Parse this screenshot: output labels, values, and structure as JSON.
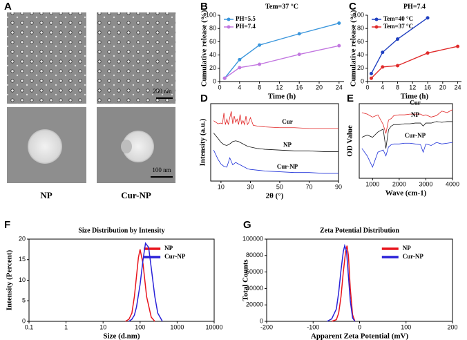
{
  "figure_a": {
    "label": "A",
    "scale_bars": [
      "250 nm",
      "100 nm"
    ],
    "captions": [
      "NP",
      "Cur-NP"
    ]
  },
  "chart_data": [
    {
      "type": "line",
      "label": "B",
      "title": "Tem=37 °C",
      "xlabel": "Time (h)",
      "ylabel": "Cumulative release (%)",
      "xlim": [
        0,
        25
      ],
      "xticks": [
        0,
        4,
        8,
        12,
        16,
        20,
        24
      ],
      "ylim": [
        0,
        100
      ],
      "yticks": [
        0,
        20,
        40,
        60,
        80,
        100
      ],
      "legend": "upper left",
      "markers": true,
      "frame": false,
      "series": [
        {
          "name": "PH=5.5",
          "color": "#3a96dc",
          "x": [
            1,
            4,
            8,
            16,
            24
          ],
          "values": [
            5,
            33,
            55,
            72,
            88
          ]
        },
        {
          "name": "PH=7.4",
          "color": "#c277e0",
          "x": [
            1,
            4,
            8,
            16,
            24
          ],
          "values": [
            5,
            21,
            26,
            41,
            54
          ]
        }
      ]
    },
    {
      "type": "line",
      "label": "C",
      "title": "PH=7.4",
      "xlabel": "Time (h)",
      "ylabel": "Cumulative release (%)",
      "xlim": [
        0,
        25
      ],
      "xticks": [
        0,
        4,
        8,
        12,
        16,
        20,
        24
      ],
      "ylim": [
        0,
        100
      ],
      "yticks": [
        0,
        20,
        40,
        60,
        80,
        100
      ],
      "legend": "upper left",
      "markers": true,
      "frame": false,
      "series": [
        {
          "name": "Tem=40 °C",
          "color": "#1f3fc0",
          "x": [
            1,
            4,
            8,
            16
          ],
          "values": [
            12,
            44,
            64,
            96
          ]
        },
        {
          "name": "Tem=37 °C",
          "color": "#e02a2a",
          "x": [
            1,
            4,
            8,
            16,
            24
          ],
          "values": [
            5,
            22,
            24,
            43,
            53
          ]
        }
      ]
    },
    {
      "type": "line",
      "label": "D",
      "xlabel": "2θ (°)",
      "ylabel": "Intensity (a.u.)",
      "xlim": [
        3,
        90
      ],
      "xticks": [
        10,
        30,
        50,
        70,
        90
      ],
      "ylim": [
        0,
        100
      ],
      "legend": "inline",
      "markers": false,
      "frame": true,
      "series": [
        {
          "name": "Cur",
          "color": "#e02020",
          "x": [
            5,
            8,
            10,
            11,
            12,
            13,
            14,
            15,
            16,
            17,
            18,
            19,
            20,
            21,
            22,
            23,
            24,
            25,
            26,
            27,
            28,
            29,
            30,
            32,
            35,
            40,
            50,
            60,
            70,
            80,
            90
          ],
          "values": [
            78,
            74,
            75,
            74,
            88,
            73,
            80,
            73,
            82,
            90,
            74,
            84,
            76,
            80,
            73,
            86,
            74,
            78,
            73,
            84,
            73,
            76,
            82,
            72,
            71,
            70,
            69,
            69,
            68,
            68,
            68
          ]
        },
        {
          "name": "NP",
          "color": "#111111",
          "x": [
            5,
            8,
            10,
            12,
            14,
            16,
            18,
            20,
            22,
            24,
            26,
            28,
            30,
            35,
            40,
            50,
            60,
            70,
            80,
            90
          ],
          "values": [
            62,
            55,
            50,
            47,
            46,
            48,
            51,
            52,
            51,
            49,
            47,
            45,
            44,
            42,
            41,
            40,
            39,
            39,
            38,
            38
          ]
        },
        {
          "name": "Cur-NP",
          "color": "#1c2fd8",
          "x": [
            5,
            8,
            10,
            12,
            14,
            16,
            18,
            20,
            22,
            24,
            26,
            28,
            30,
            35,
            40,
            50,
            60,
            70,
            80,
            90
          ],
          "values": [
            40,
            28,
            22,
            19,
            18,
            30,
            21,
            24,
            22,
            20,
            18,
            16,
            15,
            14,
            13,
            12,
            11,
            11,
            10,
            10
          ]
        }
      ]
    },
    {
      "type": "line",
      "label": "E",
      "xlabel": "Wave (cm-1)",
      "ylabel": "OD Value",
      "xlim": [
        500,
        4000
      ],
      "xticks": [
        1000,
        2000,
        3000,
        4000
      ],
      "ylim": [
        0,
        100
      ],
      "legend": "inline",
      "markers": false,
      "frame": true,
      "series": [
        {
          "name": "Cur",
          "color": "#e02020",
          "x": [
            600,
            800,
            1000,
            1200,
            1400,
            1500,
            1600,
            1700,
            1800,
            2000,
            2200,
            2400,
            2600,
            2800,
            2900,
            3000,
            3200,
            3400,
            3600,
            3800,
            4000
          ],
          "values": [
            88,
            86,
            82,
            85,
            72,
            60,
            78,
            80,
            84,
            85,
            85,
            86,
            86,
            86,
            84,
            85,
            82,
            84,
            90,
            88,
            92
          ]
        },
        {
          "name": "NP",
          "color": "#111111",
          "x": [
            600,
            800,
            1000,
            1200,
            1400,
            1500,
            1600,
            1700,
            1800,
            2000,
            2200,
            2400,
            2600,
            2800,
            2900,
            3000,
            3200,
            3400,
            3600,
            3800,
            4000
          ],
          "values": [
            55,
            58,
            55,
            62,
            66,
            40,
            65,
            70,
            72,
            72,
            73,
            73,
            74,
            74,
            70,
            74,
            74,
            76,
            75,
            76,
            76
          ]
        },
        {
          "name": "Cur-NP",
          "color": "#1c2fd8",
          "x": [
            600,
            800,
            1000,
            1200,
            1400,
            1500,
            1600,
            1700,
            1800,
            2000,
            2200,
            2400,
            2600,
            2800,
            2900,
            3000,
            3200,
            3400,
            3600,
            3800,
            4000
          ],
          "values": [
            40,
            30,
            15,
            35,
            38,
            30,
            42,
            45,
            46,
            46,
            47,
            47,
            46,
            45,
            35,
            46,
            44,
            48,
            46,
            47,
            48
          ]
        }
      ]
    },
    {
      "type": "line",
      "label": "F",
      "title": "Size Distribution by Intensity",
      "xlabel": "Size (d.nm)",
      "ylabel": "Intensity (Percent)",
      "log_x": true,
      "xlim": [
        0.1,
        10000
      ],
      "xticks": [
        0.1,
        1,
        10,
        100,
        1000,
        10000
      ],
      "ylim": [
        0,
        20
      ],
      "yticks": [
        0,
        5,
        10,
        15,
        20
      ],
      "legend": "upper right",
      "markers": false,
      "frame": true,
      "series": [
        {
          "name": "NP",
          "color": "#e8141c",
          "x": [
            40,
            50,
            60,
            70,
            80,
            90,
            100,
            120,
            150,
            200,
            250
          ],
          "values": [
            0,
            0.5,
            2,
            6,
            11,
            15.5,
            17.5,
            14,
            6,
            1,
            0
          ]
        },
        {
          "name": "Cur-NP",
          "color": "#2a22d8",
          "x": [
            50,
            60,
            70,
            80,
            100,
            120,
            140,
            170,
            200,
            250,
            300,
            400
          ],
          "values": [
            0,
            0.5,
            1.5,
            3.5,
            9,
            15,
            19,
            18,
            13,
            6,
            2,
            0
          ]
        }
      ]
    },
    {
      "type": "line",
      "label": "G",
      "title": "Zeta Potential Distribution",
      "xlabel": "Apparent Zeta Potential (mV)",
      "ylabel": "Total Counts",
      "xlim": [
        -200,
        200
      ],
      "xticks": [
        -200,
        -100,
        0,
        100,
        200
      ],
      "ylim": [
        0,
        100000
      ],
      "yticks": [
        0,
        20000,
        40000,
        60000,
        80000,
        100000
      ],
      "legend": "upper right",
      "markers": false,
      "frame": true,
      "series": [
        {
          "name": "NP",
          "color": "#e8141c",
          "x": [
            -60,
            -50,
            -45,
            -40,
            -35,
            -30,
            -27,
            -24,
            -20,
            -15,
            -10
          ],
          "values": [
            0,
            2000,
            10000,
            30000,
            60000,
            85000,
            92000,
            80000,
            40000,
            8000,
            0
          ]
        },
        {
          "name": "Cur-NP",
          "color": "#2a22d8",
          "x": [
            -70,
            -60,
            -50,
            -45,
            -40,
            -35,
            -32,
            -28,
            -24,
            -20,
            -15,
            -10
          ],
          "values": [
            0,
            3000,
            15000,
            35000,
            62000,
            85000,
            92000,
            85000,
            55000,
            25000,
            4000,
            0
          ]
        }
      ]
    }
  ]
}
